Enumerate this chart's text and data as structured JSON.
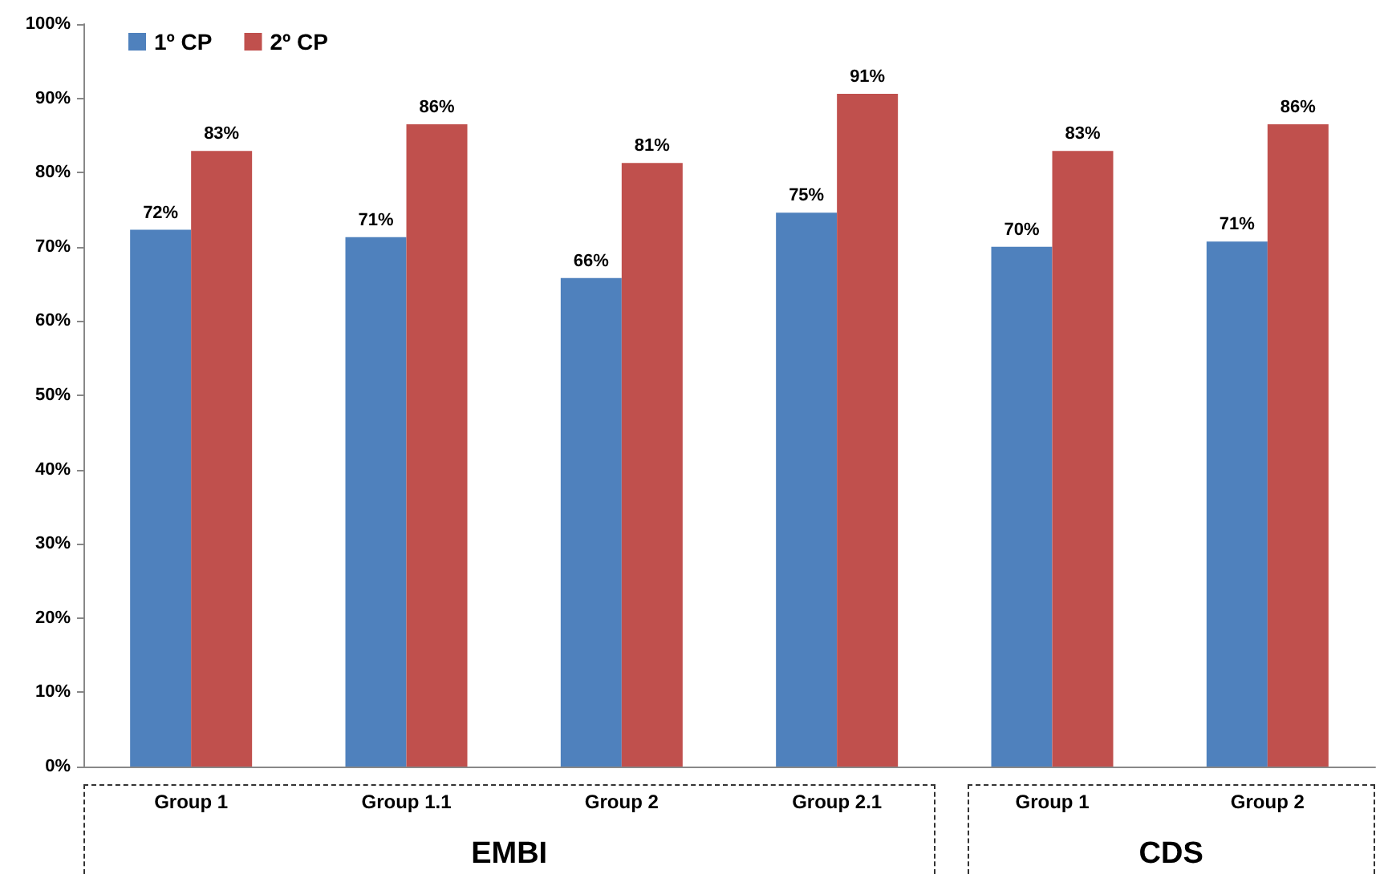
{
  "chart_data": {
    "type": "bar",
    "categories": [
      "Group 1",
      "Group 1.1",
      "Group 2",
      "Group 2.1",
      "Group 1",
      "Group 2"
    ],
    "series": [
      {
        "name": "1º CP",
        "color": "#4f81bd",
        "values": [
          72.3,
          71.3,
          65.8,
          74.6,
          70,
          70.7
        ],
        "value_labels": [
          "72%",
          "71%",
          "66%",
          "75%",
          "70%",
          "71%"
        ]
      },
      {
        "name": "2º CP",
        "color": "#c0504d",
        "values": [
          82.9,
          86.5,
          81.3,
          90.6,
          82.9,
          86.5
        ],
        "value_labels": [
          "83%",
          "86%",
          "81%",
          "91%",
          "83%",
          "86%"
        ]
      }
    ],
    "ylim": [
      0,
      100
    ],
    "yticks": [
      {
        "value": 0,
        "label": "0%"
      },
      {
        "value": 10,
        "label": "10%"
      },
      {
        "value": 20,
        "label": "20%"
      },
      {
        "value": 30,
        "label": "30%"
      },
      {
        "value": 40,
        "label": "40%"
      },
      {
        "value": 50,
        "label": "50%"
      },
      {
        "value": 60,
        "label": "60%"
      },
      {
        "value": 70,
        "label": "70%"
      },
      {
        "value": 80,
        "label": "80%"
      },
      {
        "value": 90,
        "label": "90%"
      },
      {
        "value": 100,
        "label": "100%"
      }
    ],
    "annotations": [
      "EMBI",
      "CDS"
    ],
    "grid": false,
    "legend": "top left"
  }
}
